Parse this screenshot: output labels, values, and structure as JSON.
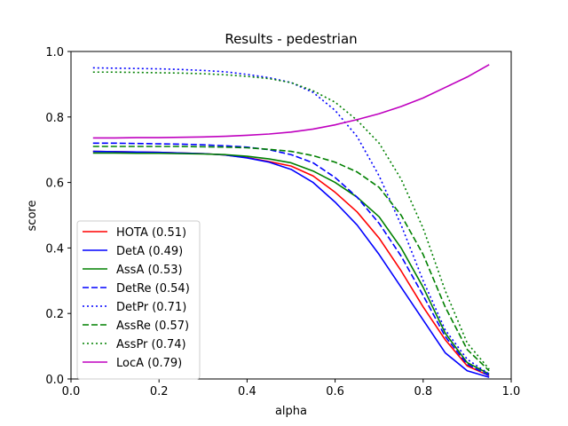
{
  "chart_data": {
    "type": "line",
    "title": "Results - pedestrian",
    "xlabel": "alpha",
    "ylabel": "score",
    "xlim": [
      0.0,
      1.0
    ],
    "ylim": [
      0.0,
      1.0
    ],
    "xticks": [
      "0.0",
      "0.2",
      "0.4",
      "0.6",
      "0.8",
      "1.0"
    ],
    "yticks": [
      "0.0",
      "0.2",
      "0.4",
      "0.6",
      "0.8",
      "1.0"
    ],
    "grid": false,
    "legend_position": "lower-left",
    "x": [
      0.05,
      0.1,
      0.15,
      0.2,
      0.25,
      0.3,
      0.35,
      0.4,
      0.45,
      0.5,
      0.55,
      0.6,
      0.65,
      0.7,
      0.75,
      0.8,
      0.85,
      0.9,
      0.95
    ],
    "series": [
      {
        "name": "HOTA (0.51)",
        "color": "#ff0000",
        "dash": "solid",
        "values": [
          0.695,
          0.694,
          0.693,
          0.692,
          0.69,
          0.688,
          0.684,
          0.676,
          0.664,
          0.65,
          0.62,
          0.57,
          0.51,
          0.43,
          0.33,
          0.22,
          0.12,
          0.04,
          0.01
        ]
      },
      {
        "name": "DetA (0.49)",
        "color": "#0000ff",
        "dash": "solid",
        "values": [
          0.695,
          0.694,
          0.693,
          0.692,
          0.69,
          0.688,
          0.684,
          0.675,
          0.662,
          0.64,
          0.6,
          0.54,
          0.47,
          0.38,
          0.28,
          0.18,
          0.08,
          0.025,
          0.005
        ]
      },
      {
        "name": "AssA (0.53)",
        "color": "#008000",
        "dash": "solid",
        "values": [
          0.69,
          0.69,
          0.689,
          0.689,
          0.688,
          0.687,
          0.685,
          0.68,
          0.672,
          0.66,
          0.635,
          0.6,
          0.555,
          0.495,
          0.4,
          0.28,
          0.14,
          0.05,
          0.015
        ]
      },
      {
        "name": "DetRe (0.54)",
        "color": "#0000ff",
        "dash": "dashed",
        "values": [
          0.72,
          0.72,
          0.719,
          0.718,
          0.717,
          0.715,
          0.712,
          0.708,
          0.7,
          0.685,
          0.66,
          0.615,
          0.555,
          0.475,
          0.375,
          0.255,
          0.13,
          0.045,
          0.01
        ]
      },
      {
        "name": "DetPr (0.71)",
        "color": "#0000ff",
        "dash": "dotted",
        "values": [
          0.95,
          0.949,
          0.948,
          0.947,
          0.945,
          0.942,
          0.938,
          0.93,
          0.92,
          0.905,
          0.875,
          0.82,
          0.74,
          0.62,
          0.47,
          0.3,
          0.15,
          0.06,
          0.015
        ]
      },
      {
        "name": "AssRe (0.57)",
        "color": "#008000",
        "dash": "dashed",
        "values": [
          0.71,
          0.71,
          0.71,
          0.71,
          0.71,
          0.709,
          0.708,
          0.706,
          0.701,
          0.695,
          0.682,
          0.662,
          0.632,
          0.585,
          0.5,
          0.38,
          0.22,
          0.09,
          0.025
        ]
      },
      {
        "name": "AssPr (0.74)",
        "color": "#008000",
        "dash": "dotted",
        "values": [
          0.937,
          0.937,
          0.936,
          0.935,
          0.934,
          0.932,
          0.929,
          0.924,
          0.917,
          0.905,
          0.88,
          0.845,
          0.79,
          0.72,
          0.61,
          0.46,
          0.27,
          0.11,
          0.03
        ]
      },
      {
        "name": "LocA (0.79)",
        "color": "#bf00bf",
        "dash": "solid",
        "values": [
          0.736,
          0.736,
          0.737,
          0.737,
          0.738,
          0.739,
          0.741,
          0.744,
          0.748,
          0.754,
          0.763,
          0.776,
          0.792,
          0.81,
          0.832,
          0.858,
          0.89,
          0.922,
          0.96
        ]
      }
    ]
  }
}
